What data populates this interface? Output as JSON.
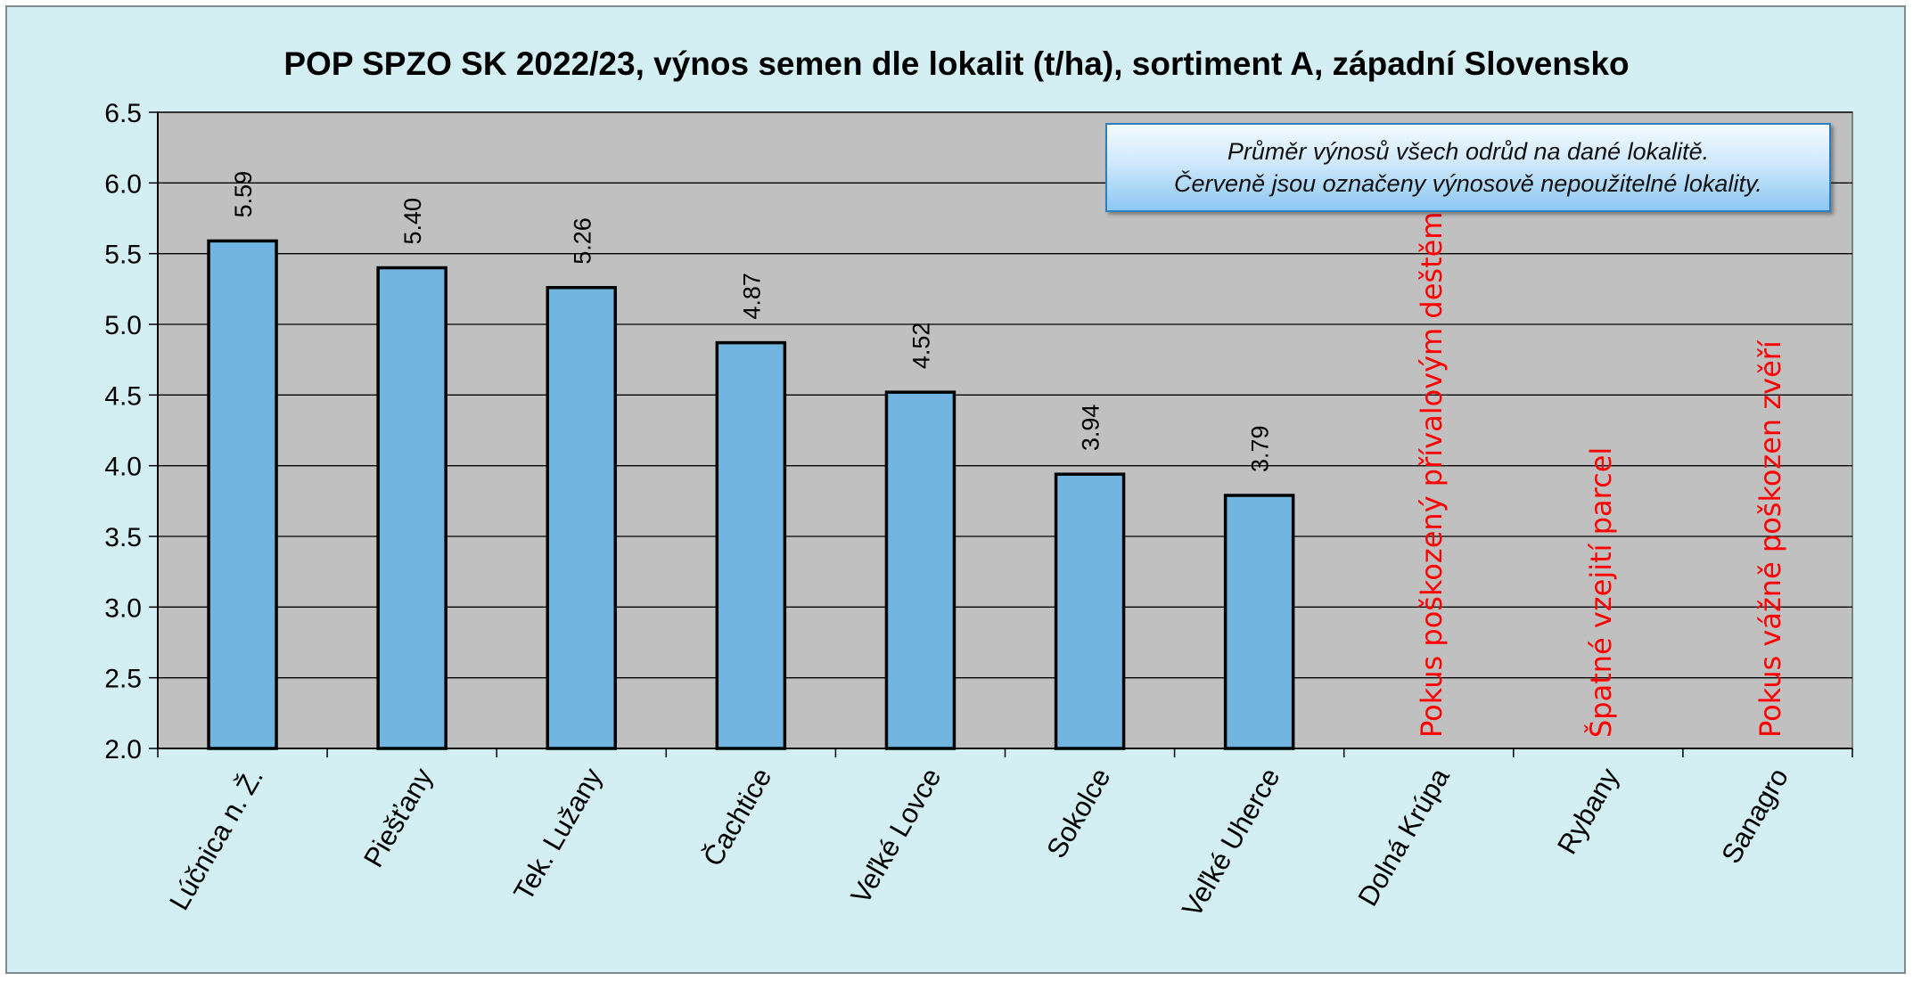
{
  "chart_data": {
    "type": "bar",
    "title": "POP SPZO SK 2022/23, výnos semen dle lokalit (t/ha), sortiment A, západní Slovensko",
    "xlabel": "",
    "ylabel": "",
    "ylim": [
      2.0,
      6.5
    ],
    "yticks": [
      "2.0",
      "2.5",
      "3.0",
      "3.5",
      "4.0",
      "4.5",
      "5.0",
      "5.5",
      "6.0",
      "6.5"
    ],
    "grid": true,
    "legend": "none",
    "categories": [
      "Lúčnica n. Ž.",
      "Piešťany",
      "Tek. Lužany",
      "Čachtice",
      "Veľké Lovce",
      "Sokolce",
      "Veľké Uherce",
      "Dolná Krúpa",
      "Rybany",
      "Sanagro"
    ],
    "values": [
      5.59,
      5.4,
      5.26,
      4.87,
      4.52,
      3.94,
      3.79,
      null,
      null,
      null
    ],
    "value_labels": [
      "5.59",
      "5.40",
      "5.26",
      "4.87",
      "4.52",
      "3.94",
      "3.79",
      "",
      "",
      ""
    ],
    "unusable_notes": [
      "",
      "",
      "",
      "",
      "",
      "",
      "",
      "Pokus poškozený přívalovým deštěm",
      "Špatné vzejití parcel",
      "Pokus vážně poškozen zvěří"
    ],
    "colors": {
      "bar_fill": "#72b5e1",
      "bar_stroke": "#000000",
      "plot_bg": "#c0c0c0",
      "chart_bg": "#d3eff4",
      "note_text": "#ff0000"
    }
  },
  "annotation": {
    "line1": "Průměr výnosů všech odrůd na dané lokalitě.",
    "line2": "Červeně jsou označeny výnosově nepoužitelné lokality."
  }
}
